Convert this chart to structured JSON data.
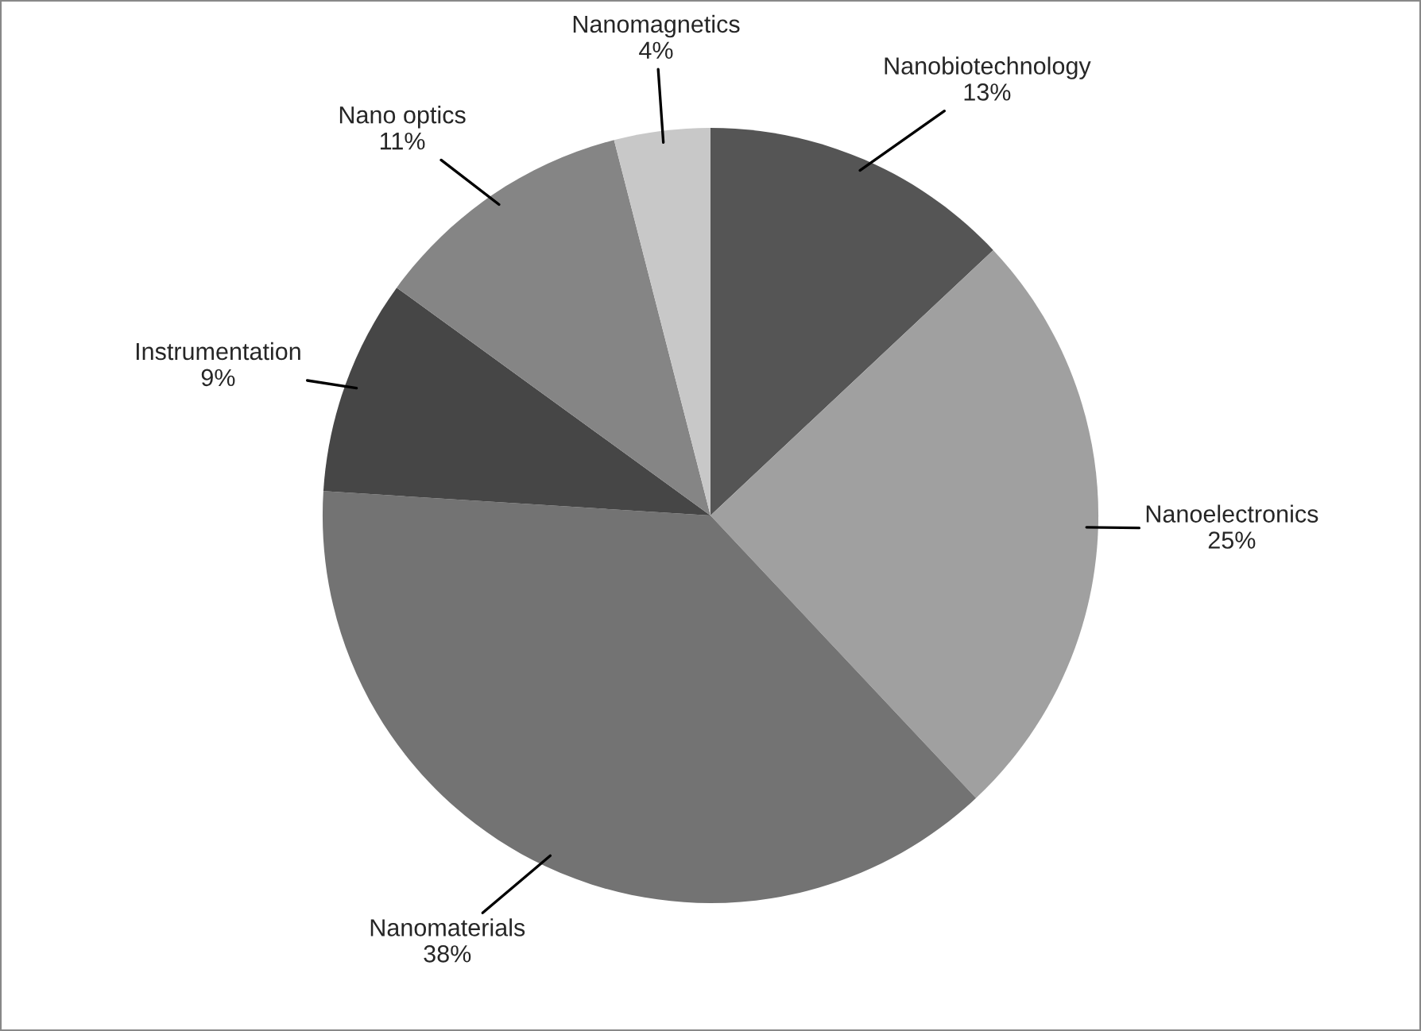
{
  "chart_data": {
    "type": "pie",
    "categories": [
      "Nanobiotechnology",
      "Nanoelectronics",
      "Nanomaterials",
      "Instrumentation",
      "Nano optics",
      "Nanomagnetics"
    ],
    "values": [
      13,
      25,
      38,
      9,
      11,
      4
    ],
    "value_labels": [
      "13%",
      "25%",
      "38%",
      "9%",
      "11%",
      "4%"
    ],
    "colors": [
      "#555555",
      "#a0a0a0",
      "#737373",
      "#464646",
      "#858585",
      "#c8c8c8"
    ],
    "legend": false
  }
}
